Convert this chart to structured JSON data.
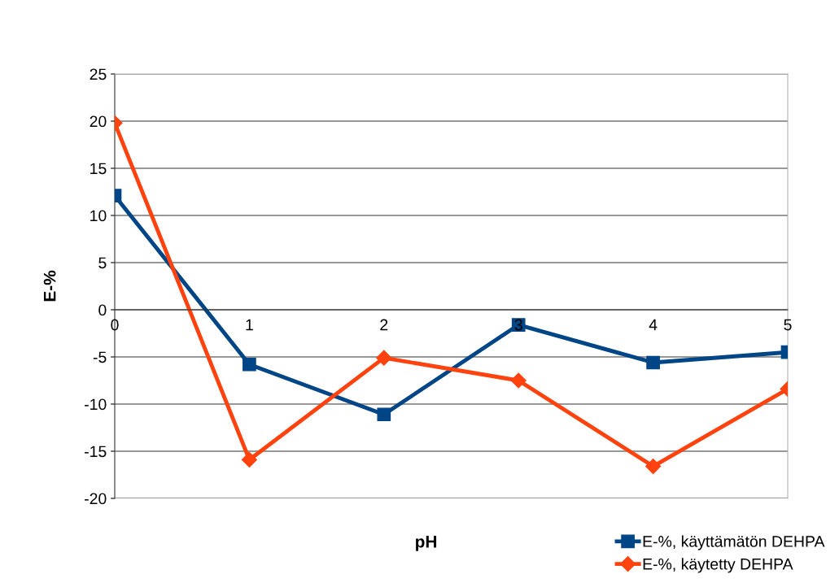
{
  "chart_data": {
    "type": "line",
    "xlabel": "pH",
    "ylabel": "E-%",
    "x": [
      0,
      1,
      2,
      3,
      4,
      5
    ],
    "series": [
      {
        "name": "E-%, käyttämätön DEHPA",
        "color": "#004586",
        "marker": "square",
        "values": [
          12.1,
          -5.8,
          -11.1,
          -1.6,
          -5.6,
          -4.5
        ]
      },
      {
        "name": "E-%, käytetty DEHPA",
        "color": "#ff420e",
        "marker": "diamond",
        "values": [
          19.8,
          -15.9,
          -5.1,
          -7.5,
          -16.6,
          -8.4
        ]
      }
    ],
    "xlim": [
      0,
      5
    ],
    "xticks": [
      0,
      1,
      2,
      3,
      4,
      5
    ],
    "ylim": [
      -20,
      25
    ],
    "yticks": [
      -20,
      -15,
      -10,
      -5,
      0,
      5,
      10,
      15,
      20,
      25
    ],
    "grid": "y",
    "legend": "bottom right",
    "line_style": "solid"
  }
}
